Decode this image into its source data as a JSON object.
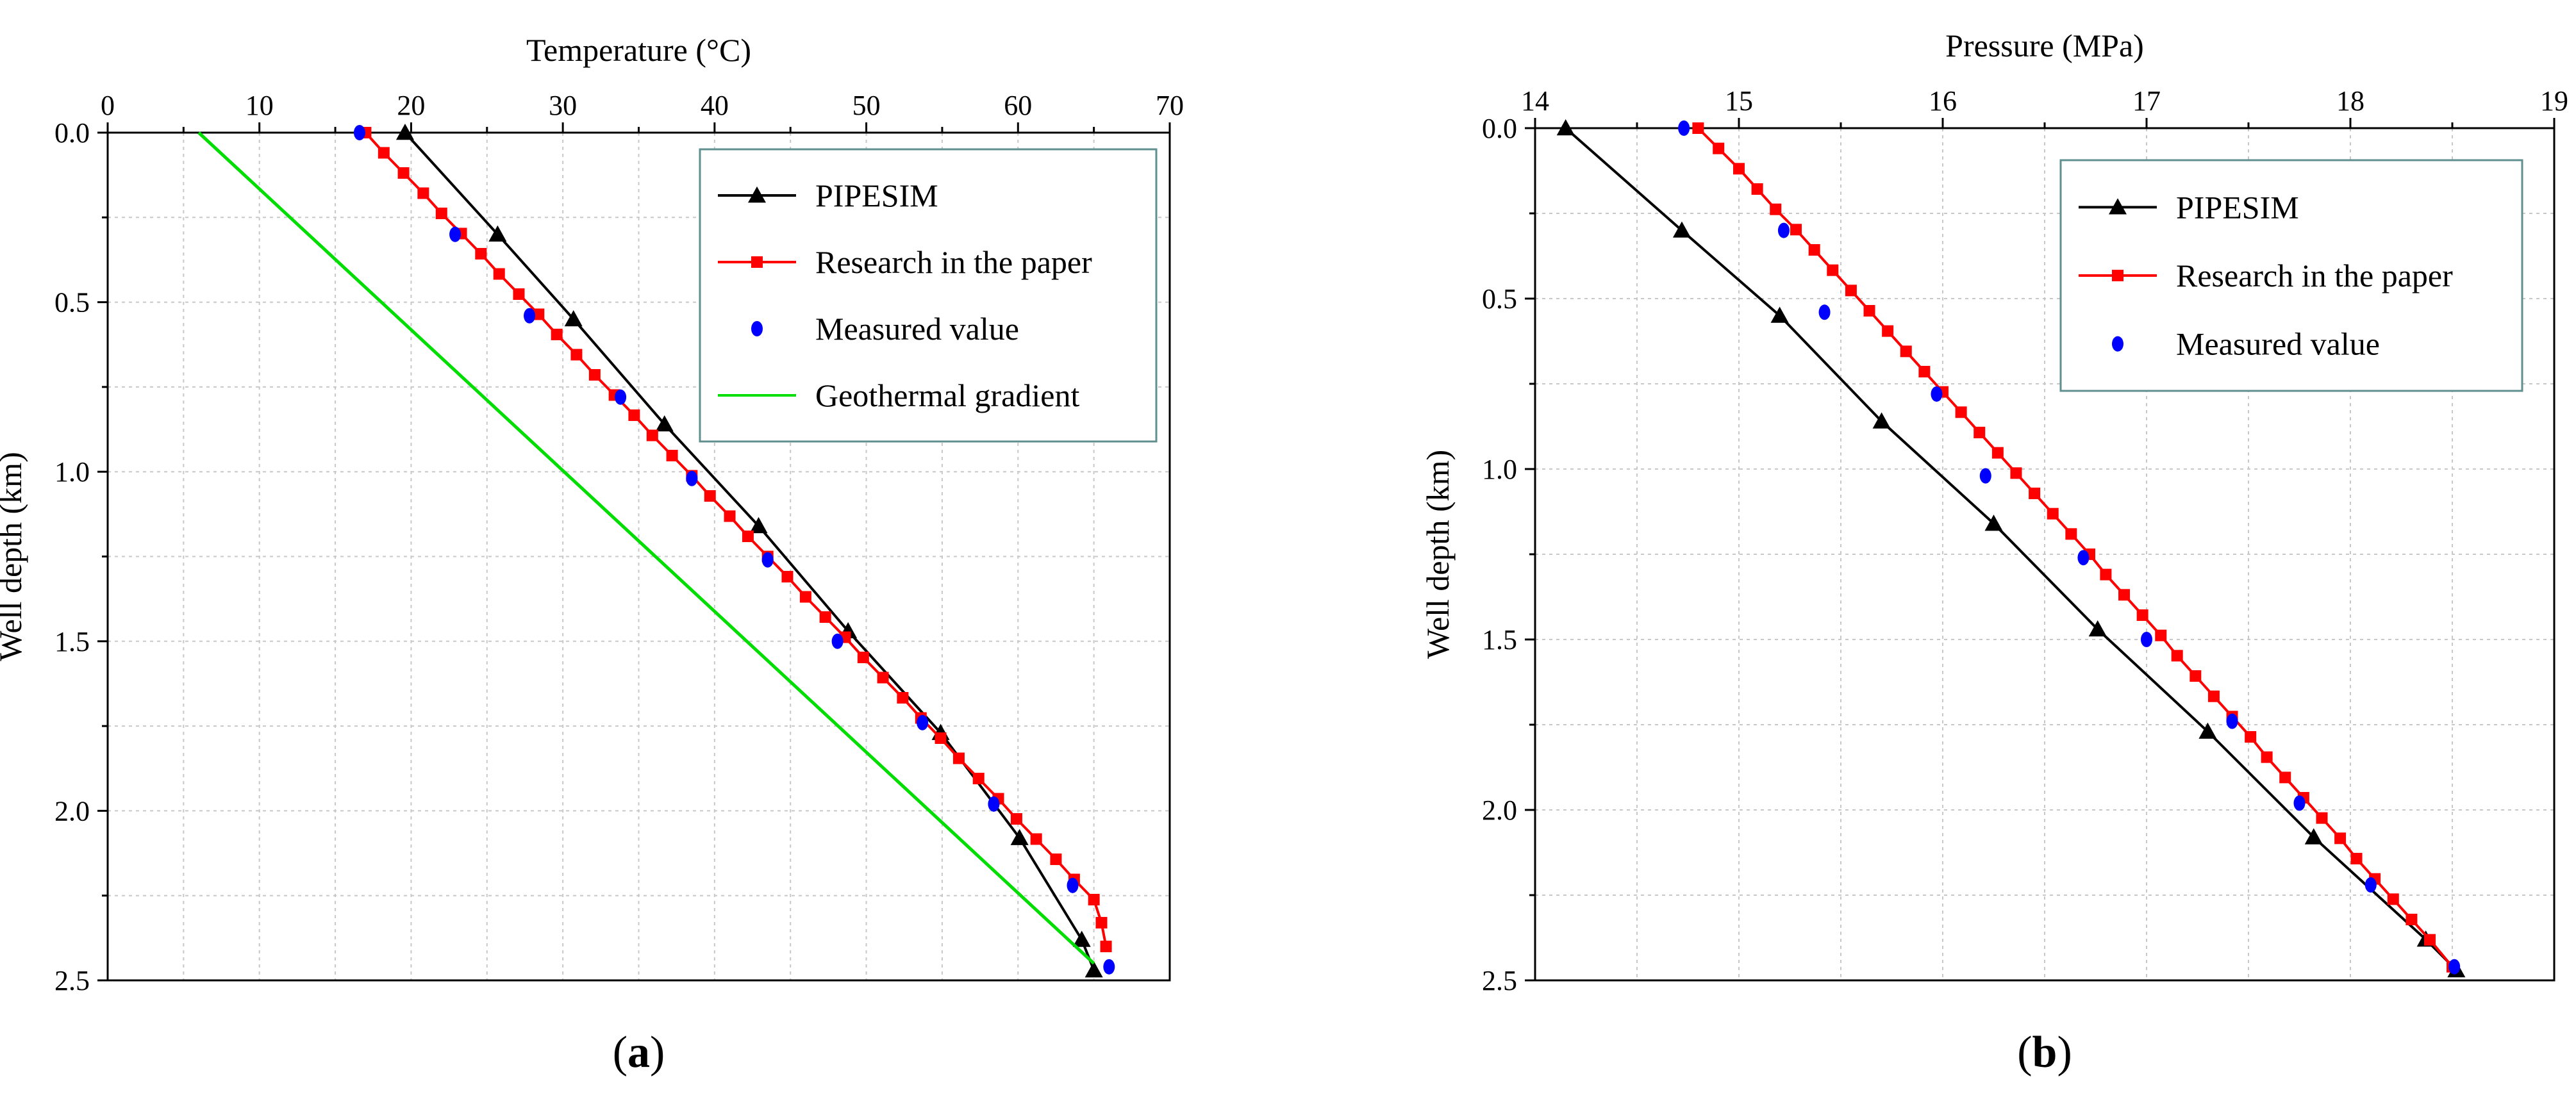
{
  "chart_data": [
    {
      "type": "line",
      "panel": "a",
      "panel_label": "(a)",
      "title": "",
      "xlabel": "Temperature (°C)",
      "ylabel": "Well depth (km)",
      "xlim": [
        0,
        70
      ],
      "ylim": [
        0,
        2.5
      ],
      "y_inverted": true,
      "x_axis_position": "top",
      "xticks": [
        0,
        10,
        20,
        30,
        40,
        50,
        60,
        70
      ],
      "xtick_labels": [
        "0",
        "10",
        "20",
        "30",
        "40",
        "50",
        "60",
        "70"
      ],
      "yticks": [
        0,
        0.5,
        1.0,
        1.5,
        2.0,
        2.5
      ],
      "ytick_labels": [
        "0.0",
        "0.5",
        "1.0",
        "1.5",
        "2.0",
        "2.5"
      ],
      "grid": true,
      "legend_position": "top-right",
      "series": [
        {
          "name": "PIPESIM",
          "color": "#000000",
          "marker": "triangle",
          "kind": "line",
          "x": [
            19.6,
            25.7,
            30.7,
            36.7,
            42.9,
            48.8,
            54.9,
            60.1,
            64.2,
            65.0
          ],
          "y": [
            0.0,
            0.3,
            0.55,
            0.86,
            1.16,
            1.47,
            1.77,
            2.08,
            2.38,
            2.47
          ]
        },
        {
          "name": "Research in the paper",
          "color": "#ff0000",
          "marker": "square",
          "kind": "line",
          "x": [
            17.0,
            18.2,
            19.5,
            20.8,
            22.0,
            23.3,
            24.6,
            25.8,
            27.1,
            28.4,
            29.6,
            30.9,
            32.1,
            33.4,
            34.7,
            35.9,
            37.2,
            38.5,
            39.7,
            41.0,
            42.2,
            43.5,
            44.8,
            46.0,
            47.3,
            48.6,
            49.8,
            51.1,
            52.4,
            53.6,
            54.9,
            56.1,
            57.4,
            58.7,
            59.9,
            61.2,
            62.5,
            63.7,
            65.0,
            65.5,
            65.8
          ],
          "y": [
            0.0,
            0.0595,
            0.119,
            0.1786,
            0.2381,
            0.2976,
            0.3571,
            0.4167,
            0.4762,
            0.5357,
            0.5952,
            0.6548,
            0.7143,
            0.7738,
            0.8333,
            0.8929,
            0.9524,
            1.0119,
            1.0714,
            1.131,
            1.1905,
            1.25,
            1.3095,
            1.369,
            1.4286,
            1.4881,
            1.5476,
            1.6071,
            1.6667,
            1.7262,
            1.7857,
            1.8452,
            1.9048,
            1.9643,
            2.0238,
            2.0833,
            2.1429,
            2.2024,
            2.2619,
            2.33,
            2.4
          ]
        },
        {
          "name": "Measured value",
          "color": "#0000ff",
          "marker": "dot",
          "kind": "scatter",
          "x": [
            16.6,
            22.9,
            27.8,
            33.8,
            38.5,
            43.5,
            48.1,
            53.7,
            58.4,
            63.6,
            66.0
          ],
          "y": [
            0.0,
            0.3,
            0.54,
            0.78,
            1.02,
            1.26,
            1.5,
            1.74,
            1.98,
            2.22,
            2.46
          ]
        },
        {
          "name": "Geothermal gradient",
          "color": "#00dd00",
          "marker": "none",
          "kind": "line",
          "x": [
            6.0,
            65.0
          ],
          "y": [
            0.0,
            2.45
          ]
        }
      ]
    },
    {
      "type": "line",
      "panel": "b",
      "panel_label": "(b)",
      "title": "",
      "xlabel": "Pressure (MPa)",
      "ylabel": "Well depth (km)",
      "xlim": [
        14,
        19
      ],
      "ylim": [
        0,
        2.5
      ],
      "y_inverted": true,
      "x_axis_position": "top",
      "xticks": [
        14,
        15,
        16,
        17,
        18,
        19
      ],
      "xtick_labels": [
        "14",
        "15",
        "16",
        "17",
        "18",
        "19"
      ],
      "yticks": [
        0,
        0.5,
        1.0,
        1.5,
        2.0,
        2.5
      ],
      "ytick_labels": [
        "0.0",
        "0.5",
        "1.0",
        "1.5",
        "2.0",
        "2.5"
      ],
      "grid": true,
      "legend_position": "top-right",
      "series": [
        {
          "name": "PIPESIM",
          "color": "#000000",
          "marker": "triangle",
          "kind": "line",
          "x": [
            14.15,
            14.72,
            15.2,
            15.7,
            16.25,
            16.76,
            17.3,
            17.82,
            18.37,
            18.52
          ],
          "y": [
            0.0,
            0.3,
            0.55,
            0.86,
            1.16,
            1.47,
            1.77,
            2.08,
            2.38,
            2.47
          ]
        },
        {
          "name": "Research in the paper",
          "color": "#ff0000",
          "marker": "square",
          "kind": "line",
          "x": [
            14.8,
            14.9,
            15.0,
            15.09,
            15.18,
            15.28,
            15.37,
            15.46,
            15.55,
            15.64,
            15.73,
            15.82,
            15.91,
            16.0,
            16.09,
            16.18,
            16.27,
            16.36,
            16.45,
            16.54,
            16.63,
            16.72,
            16.8,
            16.89,
            16.98,
            17.07,
            17.15,
            17.24,
            17.33,
            17.42,
            17.51,
            17.59,
            17.68,
            17.77,
            17.86,
            17.95,
            18.03,
            18.12,
            18.21,
            18.3,
            18.39,
            18.5
          ],
          "y": [
            0.0,
            0.0595,
            0.119,
            0.1786,
            0.2381,
            0.2976,
            0.3571,
            0.4167,
            0.4762,
            0.5357,
            0.5952,
            0.6548,
            0.7143,
            0.7738,
            0.8333,
            0.8929,
            0.9524,
            1.0119,
            1.0714,
            1.131,
            1.1905,
            1.25,
            1.3095,
            1.369,
            1.4286,
            1.4881,
            1.5476,
            1.6071,
            1.6667,
            1.7262,
            1.7857,
            1.8452,
            1.9048,
            1.9643,
            2.0238,
            2.0833,
            2.1429,
            2.2024,
            2.2619,
            2.3214,
            2.381,
            2.46
          ]
        },
        {
          "name": "Measured value",
          "color": "#0000ff",
          "marker": "dot",
          "kind": "scatter",
          "x": [
            14.73,
            15.22,
            15.42,
            15.97,
            16.21,
            16.69,
            17.0,
            17.42,
            17.75,
            18.1,
            18.51
          ],
          "y": [
            0.0,
            0.3,
            0.54,
            0.78,
            1.02,
            1.26,
            1.5,
            1.74,
            1.98,
            2.22,
            2.46
          ]
        }
      ]
    }
  ]
}
